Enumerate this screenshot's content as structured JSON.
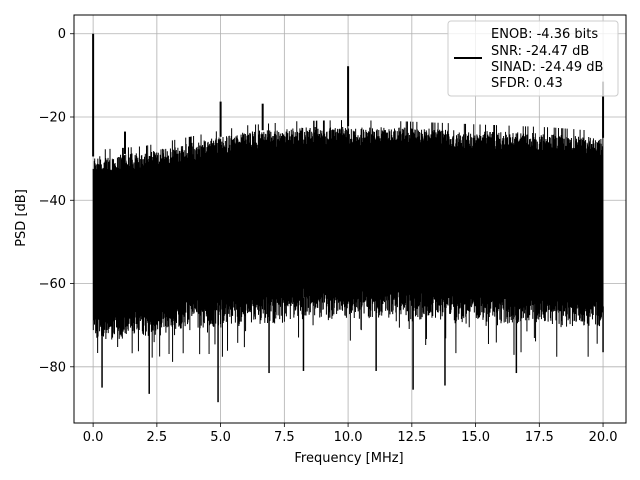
{
  "chart_data": {
    "type": "line",
    "title": "",
    "xlabel": "Frequency [MHz]",
    "ylabel": "PSD [dB]",
    "xlim": [
      -0.75,
      20.9
    ],
    "ylim": [
      -93.5,
      4.5
    ],
    "x_ticks": [
      0.0,
      2.5,
      5.0,
      7.5,
      10.0,
      12.5,
      15.0,
      17.5,
      20.0
    ],
    "x_tick_labels": [
      "0.0",
      "2.5",
      "5.0",
      "7.5",
      "10.0",
      "12.5",
      "15.0",
      "17.5",
      "20.0"
    ],
    "y_ticks": [
      0,
      -20,
      -40,
      -60,
      -80
    ],
    "y_tick_labels": [
      "0",
      "−20",
      "−40",
      "−60",
      "−80"
    ],
    "grid": true,
    "legend_position": "top-right",
    "legend": [
      "ENOB: -4.36 bits",
      "SNR: -24.47 dB",
      "SINAD: -24.49 dB",
      "SFDR: 0.43"
    ],
    "series": [
      {
        "color": "#000000",
        "x_range": [
          0.0,
          20.0
        ],
        "noise_floor_top": [
          [
            0.0,
            -29.5
          ],
          [
            2.0,
            -28.5
          ],
          [
            4.0,
            -26.0
          ],
          [
            6.0,
            -23.5
          ],
          [
            8.0,
            -22.5
          ],
          [
            10.0,
            -22.2
          ],
          [
            12.0,
            -22.5
          ],
          [
            14.0,
            -23.0
          ],
          [
            16.0,
            -23.5
          ],
          [
            18.0,
            -24.0
          ],
          [
            20.0,
            -25.0
          ]
        ],
        "noise_floor_bottom": [
          [
            0.0,
            -69.0
          ],
          [
            2.0,
            -68.0
          ],
          [
            4.0,
            -66.0
          ],
          [
            6.0,
            -64.5
          ],
          [
            8.0,
            -63.5
          ],
          [
            10.0,
            -63.0
          ],
          [
            12.0,
            -63.5
          ],
          [
            14.0,
            -64.0
          ],
          [
            16.0,
            -64.5
          ],
          [
            18.0,
            -65.0
          ],
          [
            20.0,
            -65.5
          ]
        ],
        "peaks": [
          [
            0.0,
            0.0
          ],
          [
            1.25,
            -23.5
          ],
          [
            5.0,
            -16.3
          ],
          [
            6.65,
            -16.8
          ],
          [
            10.0,
            -7.8
          ],
          [
            20.0,
            -11.5
          ]
        ],
        "dips": [
          [
            0.35,
            -85.0
          ],
          [
            2.2,
            -86.5
          ],
          [
            4.9,
            -88.5
          ],
          [
            6.9,
            -81.5
          ],
          [
            8.25,
            -81.0
          ],
          [
            11.1,
            -81.0
          ],
          [
            12.55,
            -85.5
          ],
          [
            13.8,
            -84.5
          ],
          [
            16.6,
            -81.5
          ],
          [
            20.0,
            -76.5
          ]
        ]
      }
    ]
  }
}
